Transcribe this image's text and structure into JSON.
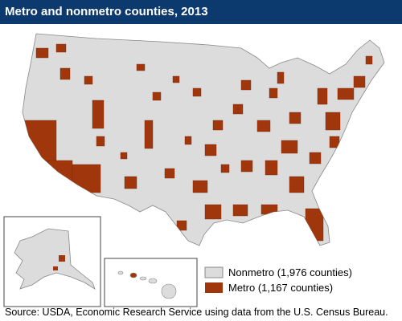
{
  "header": {
    "title": "Metro and nonmetro counties, 2013"
  },
  "legend": {
    "items": [
      {
        "label": "Nonmetro (1,976 counties)"
      },
      {
        "label": "Metro (1,167 counties)"
      }
    ]
  },
  "footer": {
    "source": "Source: USDA, Economic Research Service using data from the U.S. Census Bureau."
  }
}
